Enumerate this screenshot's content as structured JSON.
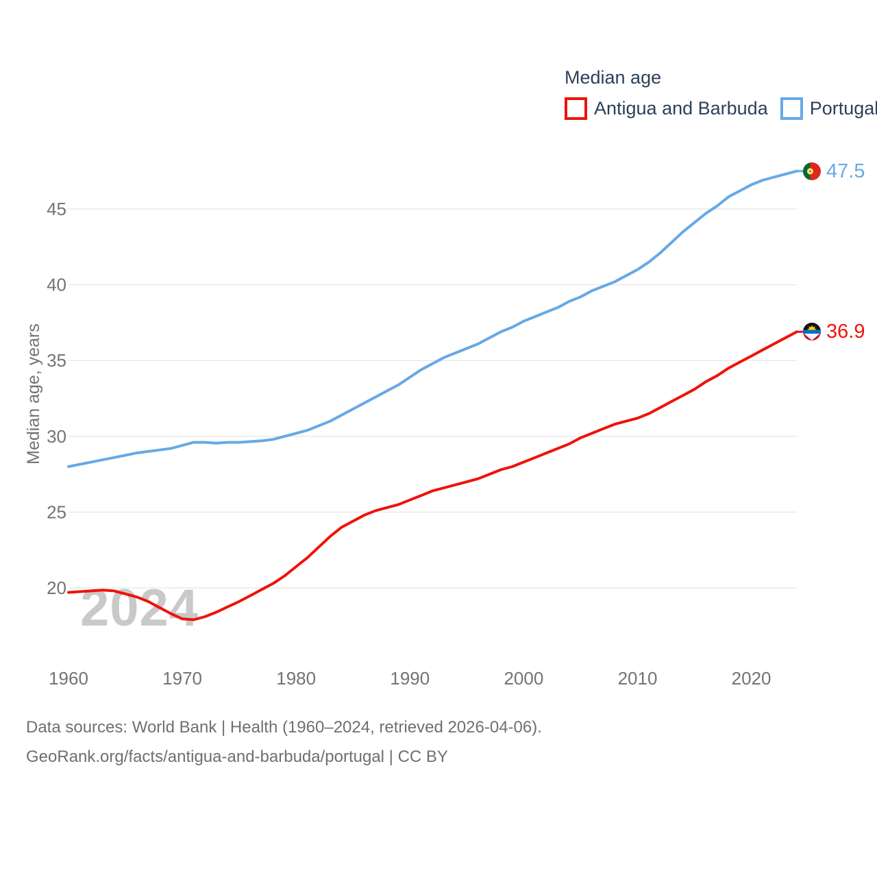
{
  "watermark": "2024",
  "footer": {
    "line1": "Data sources: World Bank | Health (1960–2024, retrieved 2026-04-06).",
    "line2": "GeoRank.org/facts/antigua-and-barbuda/portugal | CC BY"
  },
  "chart_data": {
    "type": "line",
    "title": "Median age",
    "ylabel": "Median age, years",
    "xlabel": "",
    "grid": "horizontal",
    "legend_position": "top-right",
    "xlim": [
      1960,
      2024
    ],
    "ylim": [
      17,
      48.5
    ],
    "xticks": [
      1960,
      1970,
      1980,
      1990,
      2000,
      2010,
      2020
    ],
    "yticks": [
      20,
      25,
      30,
      35,
      40,
      45
    ],
    "x": [
      1960,
      1961,
      1962,
      1963,
      1964,
      1965,
      1966,
      1967,
      1968,
      1969,
      1970,
      1971,
      1972,
      1973,
      1974,
      1975,
      1976,
      1977,
      1978,
      1979,
      1980,
      1981,
      1982,
      1983,
      1984,
      1985,
      1986,
      1987,
      1988,
      1989,
      1990,
      1991,
      1992,
      1993,
      1994,
      1995,
      1996,
      1997,
      1998,
      1999,
      2000,
      2001,
      2002,
      2003,
      2004,
      2005,
      2006,
      2007,
      2008,
      2009,
      2010,
      2011,
      2012,
      2013,
      2014,
      2015,
      2016,
      2017,
      2018,
      2019,
      2020,
      2021,
      2022,
      2023,
      2024
    ],
    "series": [
      {
        "name": "Antigua and Barbuda",
        "color": "#ee1309",
        "end_label": "36.9",
        "end_value": 36.9,
        "values": [
          19.7,
          19.75,
          19.8,
          19.85,
          19.8,
          19.6,
          19.4,
          19.1,
          18.7,
          18.3,
          17.95,
          17.9,
          18.1,
          18.4,
          18.75,
          19.1,
          19.5,
          19.9,
          20.3,
          20.8,
          21.4,
          22.0,
          22.7,
          23.4,
          24.0,
          24.4,
          24.8,
          25.1,
          25.3,
          25.5,
          25.8,
          26.1,
          26.4,
          26.6,
          26.8,
          27.0,
          27.2,
          27.5,
          27.8,
          28.0,
          28.3,
          28.6,
          28.9,
          29.2,
          29.5,
          29.9,
          30.2,
          30.5,
          30.8,
          31.0,
          31.2,
          31.5,
          31.9,
          32.3,
          32.7,
          33.1,
          33.6,
          34.0,
          34.5,
          34.9,
          35.3,
          35.7,
          36.1,
          36.5,
          36.9
        ]
      },
      {
        "name": "Portugal",
        "color": "#66a9e5",
        "end_label": "47.5",
        "end_value": 47.5,
        "values": [
          28.0,
          28.15,
          28.3,
          28.45,
          28.6,
          28.75,
          28.9,
          29.0,
          29.1,
          29.2,
          29.4,
          29.6,
          29.6,
          29.55,
          29.6,
          29.6,
          29.65,
          29.7,
          29.8,
          30.0,
          30.2,
          30.4,
          30.7,
          31.0,
          31.4,
          31.8,
          32.2,
          32.6,
          33.0,
          33.4,
          33.9,
          34.4,
          34.8,
          35.2,
          35.5,
          35.8,
          36.1,
          36.5,
          36.9,
          37.2,
          37.6,
          37.9,
          38.2,
          38.5,
          38.9,
          39.2,
          39.6,
          39.9,
          40.2,
          40.6,
          41.0,
          41.5,
          42.1,
          42.8,
          43.5,
          44.1,
          44.7,
          45.2,
          45.8,
          46.2,
          46.6,
          46.9,
          47.1,
          47.3,
          47.5
        ]
      }
    ]
  }
}
